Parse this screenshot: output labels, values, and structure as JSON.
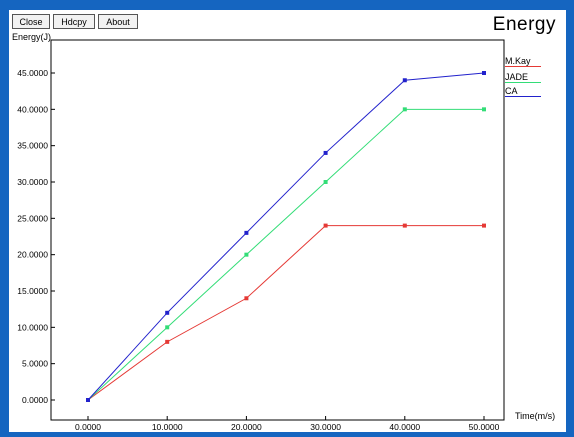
{
  "window": {
    "buttons": {
      "close": "Close",
      "hdcpy": "Hdcpy",
      "about": "About"
    }
  },
  "chart_data": {
    "type": "line",
    "title": "Energy",
    "xlabel": "Time(m/s)",
    "ylabel": "Energy(J)",
    "x": [
      0,
      10,
      20,
      30,
      40,
      50
    ],
    "xlim": [
      0,
      50
    ],
    "ylim": [
      0,
      45
    ],
    "x_ticks": [
      "0.0000",
      "10.0000",
      "20.0000",
      "30.0000",
      "40.0000",
      "50.0000"
    ],
    "y_ticks": [
      "0.0000",
      "5.0000",
      "10.0000",
      "15.0000",
      "20.0000",
      "25.0000",
      "30.0000",
      "35.0000",
      "40.0000",
      "45.0000"
    ],
    "grid": false,
    "legend_position": "top-right",
    "series": [
      {
        "name": "M.Kay",
        "color": "#e53935",
        "values": [
          0,
          8,
          14,
          24,
          24,
          24
        ]
      },
      {
        "name": "JADE",
        "color": "#33dd77",
        "values": [
          0,
          10,
          20,
          30,
          40,
          40
        ]
      },
      {
        "name": "CA",
        "color": "#2222cc",
        "values": [
          0,
          12,
          23,
          34,
          44,
          45
        ]
      }
    ]
  }
}
